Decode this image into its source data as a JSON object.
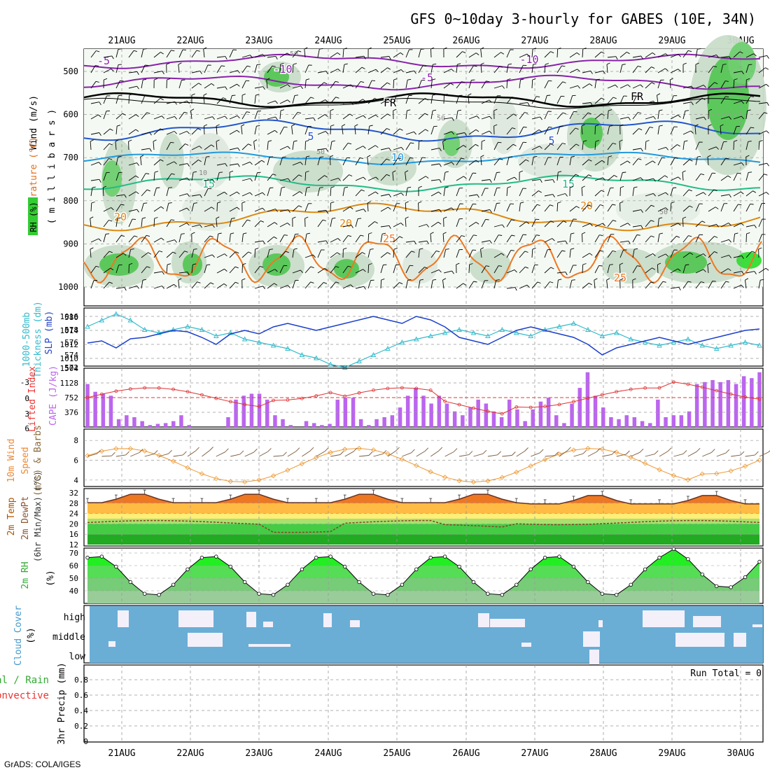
{
  "title": "GFS 0~10day 3-hourly for GABES (10E, 34N)",
  "footer": "GrADS: COLA/IGES",
  "dates": [
    "21AUG",
    "22AUG",
    "23AUG",
    "24AUG",
    "25AUG",
    "26AUG",
    "27AUG",
    "28AUG",
    "29AUG",
    "30AUG"
  ],
  "panel1": {
    "ylabel_wind": "Wind (m/s)",
    "ylabel_temp": "Temperature (°C)",
    "ylabel_rh": "RH (%)",
    "ylabel_mb": "( m i l l i b a r s )",
    "pressure_ticks": [
      "500",
      "600",
      "700",
      "800",
      "900",
      "1000"
    ],
    "contour_labels": [
      "-5",
      "-10",
      "-10",
      "-5",
      "FR",
      "FR",
      "5",
      "5",
      "10",
      "15",
      "15",
      "20",
      "20",
      "20",
      "25",
      "25"
    ],
    "rh_labels": [
      "50",
      "50",
      "10",
      "50",
      "50"
    ]
  },
  "panel2": {
    "ylabel_thk": "Thickness (dm)",
    "ylabel_thk2": "1000-500mb",
    "ylabel_slp": "SLP (mb)",
    "left_ticks": [
      "580",
      "578",
      "576",
      "574",
      "572"
    ],
    "right_ticks": [
      "1016",
      "1014",
      "1012",
      "1010"
    ]
  },
  "panel3": {
    "ylabel_li": "Lifted Index",
    "ylabel_cape": "CAPE (J/kg)",
    "left_ticks": [
      "-3",
      "0",
      "3",
      "6"
    ],
    "right_ticks": [
      "1504",
      "1128",
      "752",
      "376"
    ]
  },
  "panel4": {
    "ylabel1": "10m Wind",
    "ylabel2": "Speed",
    "ylabel3": "(m/s) & Barbs",
    "ticks": [
      "8",
      "6",
      "4"
    ]
  },
  "panel5": {
    "ylabel1": "2m Temp",
    "ylabel2": "2m DewPt",
    "ylabel3": "(6hr Min/Max) (°C)",
    "ticks": [
      "32",
      "28",
      "24",
      "20",
      "16",
      "12"
    ]
  },
  "panel6": {
    "ylabel1": "2m RH",
    "ylabel2": "(%)",
    "ticks": [
      "70",
      "60",
      "50",
      "40"
    ]
  },
  "panel7": {
    "ylabel1": "Cloud Cover",
    "ylabel2": "(%)",
    "levels": [
      "high",
      "middle",
      "low"
    ]
  },
  "panel8": {
    "ylabel_total": "Total / Rain",
    "ylabel_conv": "Convective",
    "ylabel_precip": "3hr Precip (mm)",
    "run_total": "Run Total = 0",
    "ticks": [
      "0.8",
      "0.6",
      "0.4",
      "0.2",
      "0"
    ]
  },
  "chart_data": {
    "type": "meteogram",
    "time_axis": [
      "21AUG",
      "22AUG",
      "23AUG",
      "24AUG",
      "25AUG",
      "26AUG",
      "27AUG",
      "28AUG",
      "29AUG",
      "30AUG"
    ],
    "slp_mb": [
      1012.2,
      1012.5,
      1011.5,
      1012.8,
      1013.0,
      1013.5,
      1014.0,
      1013.8,
      1013.0,
      1012.0,
      1013.5,
      1014.0,
      1013.5,
      1014.5,
      1015.0,
      1014.5,
      1014.0,
      1014.5,
      1015.0,
      1015.5,
      1016.0,
      1015.5,
      1015.0,
      1016.0,
      1015.5,
      1014.5,
      1013.0,
      1012.5,
      1012.0,
      1013.0,
      1014.0,
      1014.5,
      1014.0,
      1013.5,
      1013.0,
      1012.0,
      1010.5,
      1011.5,
      1012.0,
      1012.5,
      1013.0,
      1012.5,
      1012.0,
      1012.5,
      1013.0,
      1013.5,
      1014.0,
      1014.2
    ],
    "thickness_dm": [
      578.5,
      579.5,
      580.5,
      579.5,
      578.0,
      577.5,
      578.0,
      578.5,
      578.0,
      577.0,
      577.5,
      576.5,
      576.0,
      575.5,
      575.0,
      574.0,
      573.5,
      572.5,
      572.0,
      573.0,
      574.0,
      575.0,
      576.0,
      576.5,
      577.0,
      577.5,
      578.0,
      577.5,
      577.0,
      578.0,
      577.5,
      577.0,
      578.0,
      578.5,
      579.0,
      578.0,
      577.0,
      577.5,
      576.5,
      576.0,
      575.5,
      576.0,
      576.5,
      575.5,
      575.0,
      575.5,
      576.0,
      575.5
    ],
    "cape_jkg": [
      1100,
      900,
      850,
      800,
      200,
      300,
      250,
      150,
      50,
      80,
      100,
      150,
      300,
      50,
      0,
      0,
      0,
      0,
      250,
      700,
      800,
      850,
      850,
      700,
      300,
      200,
      50,
      0,
      150,
      100,
      50,
      80,
      700,
      750,
      750,
      200,
      50,
      200,
      250,
      300,
      500,
      800,
      1000,
      800,
      600,
      800,
      600,
      400,
      300,
      500,
      700,
      600,
      400,
      250,
      700,
      450,
      150,
      450,
      650,
      750,
      300,
      100,
      600,
      1000,
      1400,
      800,
      500,
      250,
      200,
      300,
      250,
      150,
      100,
      700,
      250,
      300,
      300,
      400,
      1100,
      1150,
      1200,
      1150,
      1200,
      1100,
      1300,
      1250,
      1400
    ]
  }
}
